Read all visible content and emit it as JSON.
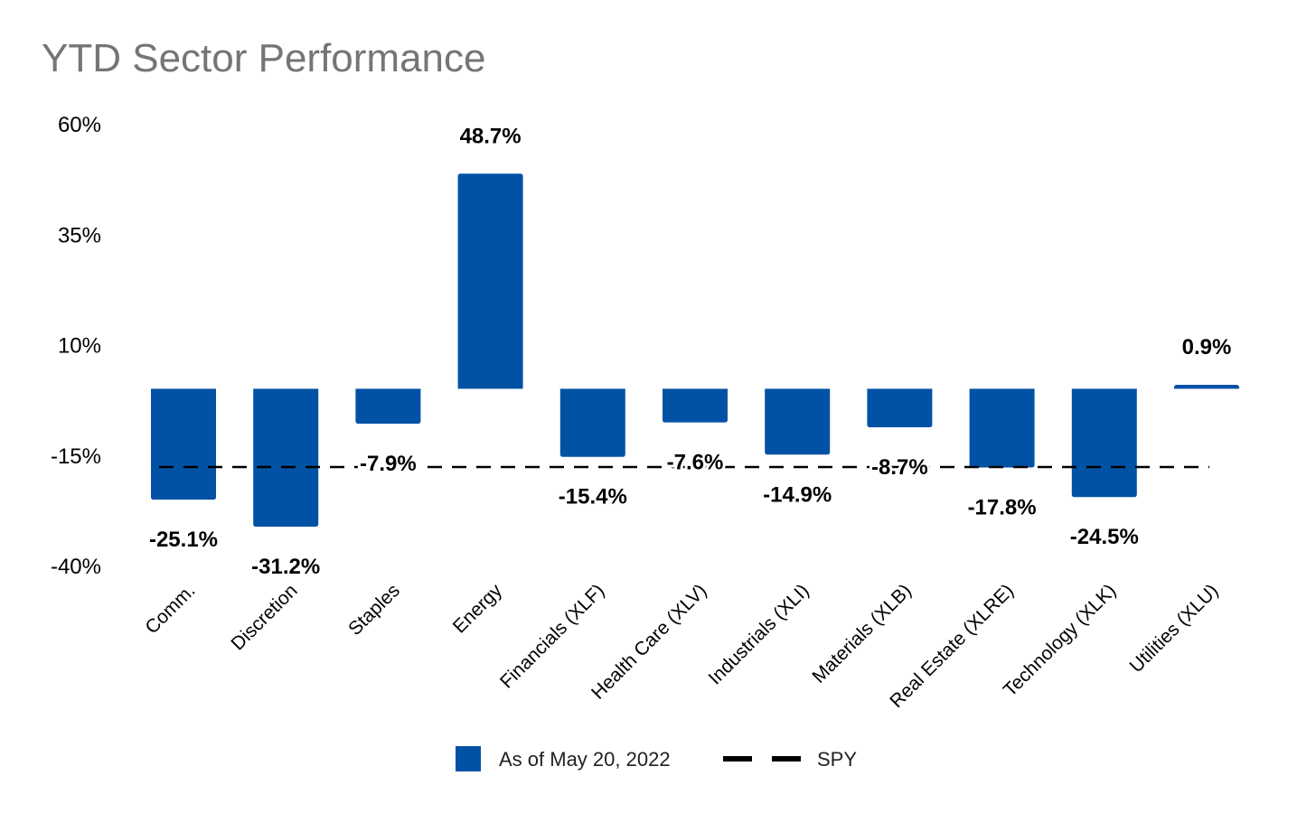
{
  "chart_data": {
    "type": "bar",
    "title": "YTD Sector Performance",
    "xlabel": "",
    "ylabel": "",
    "categories": [
      "Comm.",
      "Discretion",
      "Staples",
      "Energy",
      "Financials (XLF)",
      "Health Care (XLV)",
      "Industrials (XLI)",
      "Materials (XLB)",
      "Real Estate (XLRE)",
      "Technology (XLK)",
      "Utilities (XLU)"
    ],
    "series": [
      {
        "name": "As of May 20, 2022",
        "type": "bar",
        "color": "#0152a5",
        "values": [
          -25.1,
          -31.2,
          -7.9,
          48.7,
          -15.4,
          -7.6,
          -14.9,
          -8.7,
          -17.8,
          -24.5,
          0.9
        ],
        "data_labels": [
          "-25.1%",
          "-31.2%",
          "-7.9%",
          "48.7%",
          "-15.4%",
          "-7.6%",
          "-14.9%",
          "-8.7%",
          "-17.8%",
          "-24.5%",
          "0.9%"
        ]
      },
      {
        "name": "SPY",
        "type": "line",
        "style": "dashed",
        "color": "#000000",
        "value": -17.7
      }
    ],
    "yticks": [
      60,
      35,
      10,
      -15,
      -40
    ],
    "ytick_labels": [
      "60%",
      "35%",
      "10%",
      "-15%",
      "-40%"
    ],
    "ylim": [
      -40,
      60
    ],
    "grid": false,
    "legend": "bottom"
  }
}
